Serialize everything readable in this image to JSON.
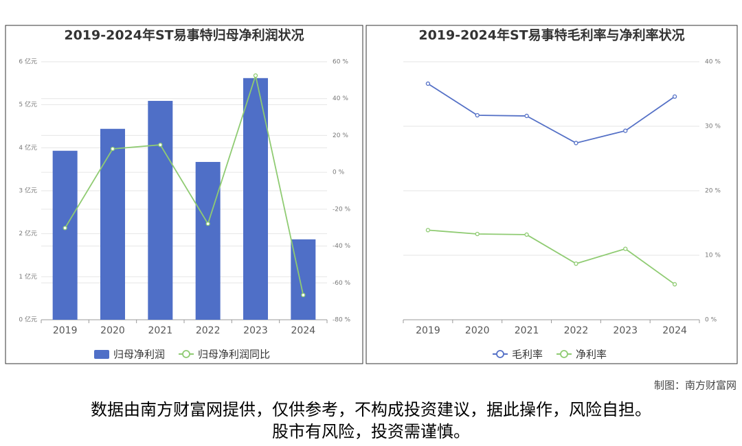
{
  "chart_data": [
    {
      "type": "bar",
      "title": "2019-2024年ST易事特归母净利润状况",
      "categories": [
        "2019",
        "2020",
        "2021",
        "2022",
        "2023",
        "2024"
      ],
      "series": [
        {
          "name": "归母净利润",
          "type": "bar",
          "color": "#4f6fc7",
          "values": [
            3.93,
            4.44,
            5.09,
            3.67,
            5.62,
            1.87
          ]
        },
        {
          "name": "归母净利润同比",
          "type": "line",
          "axis": "y2",
          "color": "#8fcb72",
          "values": [
            -30.2,
            12.7,
            14.9,
            -27.9,
            52.5,
            -66.6
          ]
        }
      ],
      "ylim": [
        0,
        6
      ],
      "yticks": [
        {
          "value": 0,
          "label": "0 亿元"
        },
        {
          "value": 1,
          "label": "1 亿元"
        },
        {
          "value": 2,
          "label": "2 亿元"
        },
        {
          "value": 3,
          "label": "3 亿元"
        },
        {
          "value": 4,
          "label": "4 亿元"
        },
        {
          "value": 5,
          "label": "5 亿元"
        },
        {
          "value": 6,
          "label": "6 亿元"
        }
      ],
      "y2lim": [
        -80,
        60
      ],
      "y2ticks": [
        {
          "value": -80,
          "label": "-80 %"
        },
        {
          "value": -60,
          "label": "-60 %"
        },
        {
          "value": -40,
          "label": "-40 %"
        },
        {
          "value": -20,
          "label": "-20 %"
        },
        {
          "value": 0,
          "label": "0 %"
        },
        {
          "value": 20,
          "label": "20 %"
        },
        {
          "value": 40,
          "label": "40 %"
        },
        {
          "value": 60,
          "label": "60 %"
        }
      ],
      "grid": true
    },
    {
      "type": "line",
      "title": "2019-2024年ST易事特毛利率与净利率状况",
      "categories": [
        "2019",
        "2020",
        "2021",
        "2022",
        "2023",
        "2024"
      ],
      "series": [
        {
          "name": "毛利率",
          "type": "line",
          "axis": "y2",
          "color": "#5470c6",
          "values": [
            36.6,
            31.7,
            31.6,
            27.4,
            29.3,
            34.6
          ]
        },
        {
          "name": "净利率",
          "type": "line",
          "axis": "y2",
          "color": "#8fcb72",
          "values": [
            13.9,
            13.3,
            13.2,
            8.7,
            11.0,
            5.5
          ]
        }
      ],
      "y2lim": [
        0,
        40
      ],
      "y2ticks": [
        {
          "value": 0,
          "label": "0 %"
        },
        {
          "value": 10,
          "label": "10 %"
        },
        {
          "value": 20,
          "label": "20 %"
        },
        {
          "value": 30,
          "label": "30 %"
        },
        {
          "value": 40,
          "label": "40 %"
        }
      ],
      "grid": true
    }
  ],
  "credit": "制图：南方财富网",
  "disclaimer": [
    "数据由南方财富网提供，仅供参考，不构成投资建议，据此操作，风险自担。",
    "股市有风险，投资需谨慎。"
  ]
}
